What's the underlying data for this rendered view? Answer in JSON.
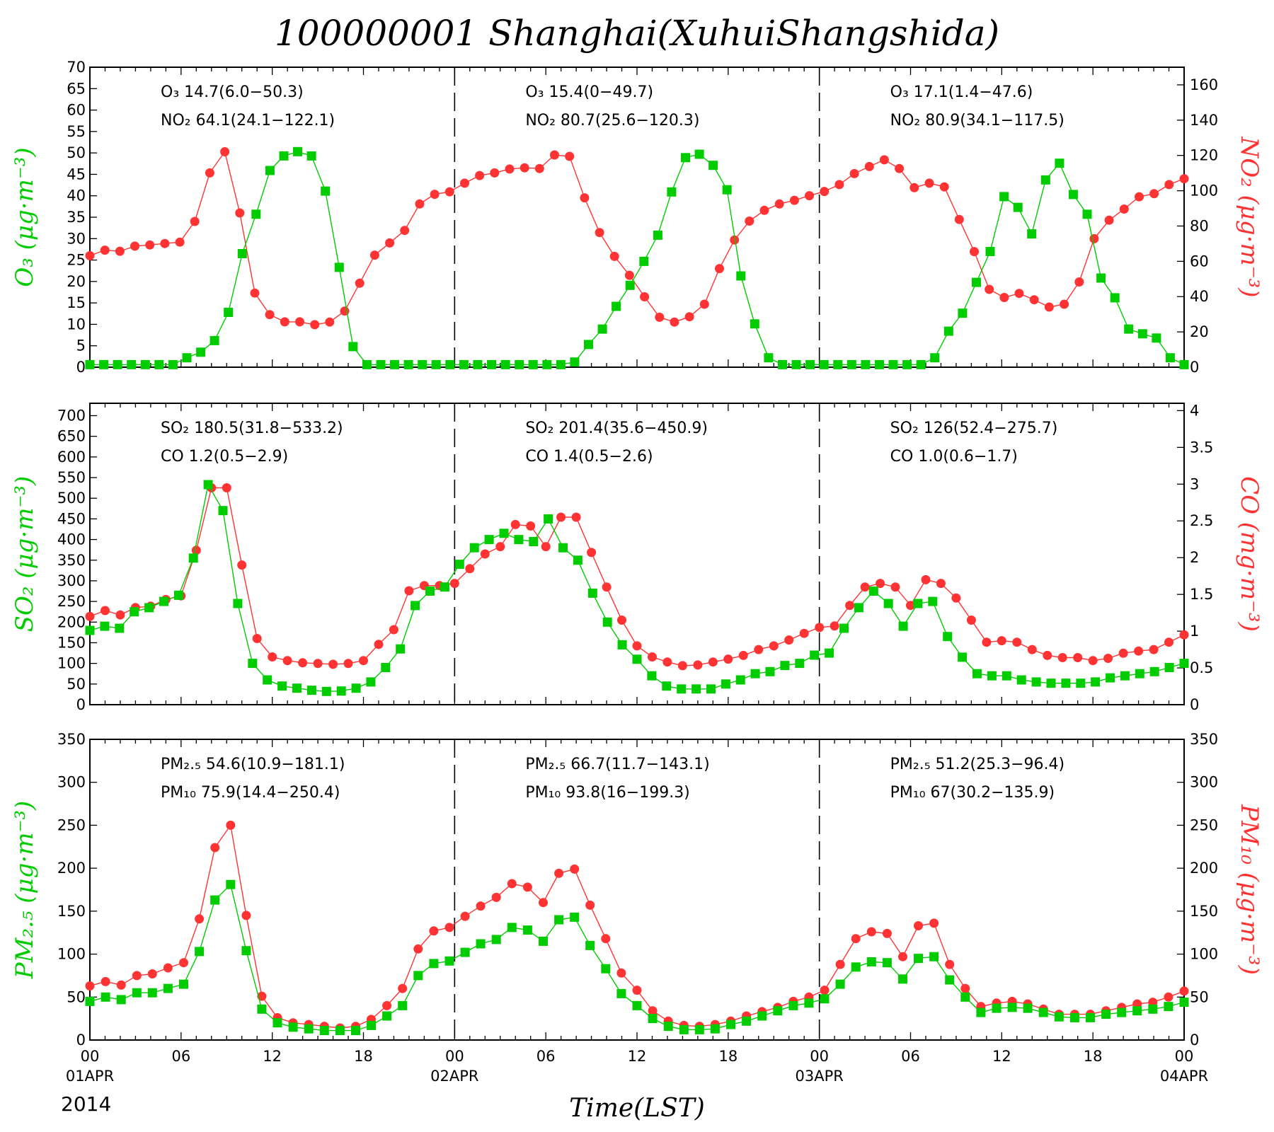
{
  "title": "100000001  Shanghai(XuhuiShangshida)",
  "x_axis": {
    "hour_labels": [
      "00",
      "06",
      "12",
      "18",
      "00",
      "06",
      "12",
      "18",
      "00",
      "06",
      "12",
      "18",
      "00"
    ],
    "date_labels": [
      "01APR",
      "02APR",
      "03APR",
      "04APR"
    ],
    "year_label": "2014",
    "xlabel": "Time(LST)"
  },
  "colors": {
    "left_series": "#00cc00",
    "right_series": "#ff3333"
  },
  "chart_data": [
    {
      "type": "line",
      "left_axis": {
        "label": "O₃  (μg·m⁻³)",
        "range": [
          0,
          70
        ],
        "ticks": [
          0,
          5,
          10,
          15,
          20,
          25,
          30,
          35,
          40,
          45,
          50,
          55,
          60,
          65,
          70
        ]
      },
      "right_axis": {
        "label": "NO₂ (μg·m⁻³)",
        "range": [
          0,
          170
        ],
        "ticks": [
          0,
          20,
          40,
          60,
          80,
          100,
          120,
          140,
          160
        ]
      },
      "annotations": [
        [
          "O₃ 14.7(6.0−50.3)",
          "NO₂ 64.1(24.1−122.1)"
        ],
        [
          "O₃ 15.4(0−49.7)",
          "NO₂ 80.7(25.6−120.3)"
        ],
        [
          "O₃ 17.1(1.4−47.6)",
          "NO₂ 80.9(34.1−117.5)"
        ]
      ],
      "series": [
        {
          "name": "O₃",
          "axis": "left",
          "marker": "square",
          "values": [
            0.6,
            0.6,
            0.6,
            0.6,
            0.6,
            0.6,
            0.6,
            2.2,
            3.5,
            6.2,
            12.8,
            26.5,
            35.7,
            45.9,
            49.3,
            50.3,
            49.3,
            41.1,
            23.3,
            4.8,
            0.6,
            0.6,
            0.6,
            0.6,
            0.6,
            0.6,
            0.6,
            0.6,
            0.6,
            0.6,
            0.6,
            0.6,
            0.6,
            0.6,
            0.6,
            1.2,
            5.3,
            8.9,
            14.2,
            19.1,
            24.7,
            30.8,
            40.9,
            48.9,
            49.7,
            47.1,
            41.4,
            21.3,
            10.1,
            2.2,
            0.6,
            0.6,
            0.6,
            0.6,
            0.6,
            0.6,
            0.6,
            0.6,
            0.6,
            0.6,
            0.6,
            2.2,
            8.4,
            12.6,
            19.8,
            27.0,
            39.8,
            37.3,
            31.1,
            43.7,
            47.6,
            40.3,
            35.7,
            20.8,
            16.2,
            8.9,
            7.8,
            6.8,
            2.2,
            0.6
          ]
        },
        {
          "name": "NO₂",
          "axis": "right",
          "marker": "circle",
          "values": [
            63.2,
            66.3,
            65.7,
            68.6,
            69.3,
            70.1,
            70.9,
            82.6,
            110.1,
            122.1,
            87.4,
            42.0,
            29.8,
            25.7,
            25.7,
            24.1,
            25.6,
            31.8,
            47.6,
            63.5,
            70.4,
            77.5,
            92.5,
            98.0,
            99.4,
            104.3,
            108.6,
            110.1,
            112.3,
            113.0,
            112.6,
            120.3,
            119.5,
            96.0,
            76.3,
            62.8,
            52.1,
            39.9,
            28.3,
            25.6,
            28.6,
            35.7,
            55.9,
            72.1,
            82.8,
            88.9,
            92.5,
            94.6,
            97.2,
            99.6,
            103.5,
            109.7,
            113.7,
            117.5,
            112.6,
            101.7,
            104.3,
            102.2,
            83.7,
            65.5,
            44.1,
            39.5,
            41.8,
            38.2,
            34.1,
            35.7,
            48.3,
            72.8,
            83.3,
            89.6,
            96.6,
            98.3,
            103.5,
            106.8
          ]
        }
      ]
    },
    {
      "type": "line",
      "left_axis": {
        "label": "SO₂  (μg·m⁻³)",
        "range": [
          0,
          730
        ],
        "ticks": [
          0,
          50,
          100,
          150,
          200,
          250,
          300,
          350,
          400,
          450,
          500,
          550,
          600,
          650,
          700
        ]
      },
      "right_axis": {
        "label": "CO  (mg·m⁻³)",
        "range": [
          0,
          4.1
        ],
        "ticks": [
          0,
          0.5,
          1,
          1.5,
          2,
          2.5,
          3,
          3.5,
          4
        ]
      },
      "annotations": [
        [
          "SO₂ 180.5(31.8−533.2)",
          "CO 1.2(0.5−2.9)"
        ],
        [
          "SO₂ 201.4(35.6−450.9)",
          "CO 1.4(0.5−2.6)"
        ],
        [
          "SO₂ 126(52.4−275.7)",
          "CO 1.0(0.6−1.7)"
        ]
      ],
      "series": [
        {
          "name": "SO₂",
          "axis": "left",
          "marker": "square",
          "values": [
            180,
            190,
            185,
            225,
            235,
            250,
            265,
            355,
            533,
            470,
            245,
            100,
            60,
            45,
            40,
            35,
            32,
            33,
            40,
            55,
            90,
            135,
            240,
            275,
            285,
            340,
            380,
            400,
            415,
            400,
            395,
            450,
            380,
            350,
            270,
            200,
            145,
            110,
            70,
            45,
            38,
            38,
            38,
            50,
            60,
            75,
            80,
            95,
            100,
            120,
            125,
            185,
            235,
            275,
            245,
            190,
            245,
            250,
            165,
            115,
            75,
            70,
            70,
            60,
            55,
            52,
            52,
            52,
            55,
            65,
            70,
            75,
            80,
            90,
            100
          ]
        },
        {
          "name": "CO",
          "axis": "right",
          "marker": "circle",
          "values": [
            1.2,
            1.28,
            1.22,
            1.32,
            1.34,
            1.43,
            1.48,
            2.1,
            2.95,
            2.95,
            1.9,
            0.9,
            0.65,
            0.6,
            0.57,
            0.56,
            0.55,
            0.56,
            0.6,
            0.82,
            1.02,
            1.55,
            1.62,
            1.62,
            1.65,
            1.85,
            2.05,
            2.15,
            2.45,
            2.43,
            2.15,
            2.55,
            2.55,
            2.07,
            1.6,
            1.15,
            0.8,
            0.65,
            0.58,
            0.53,
            0.54,
            0.58,
            0.62,
            0.67,
            0.75,
            0.8,
            0.88,
            0.97,
            1.05,
            1.07,
            1.35,
            1.6,
            1.65,
            1.6,
            1.35,
            1.7,
            1.65,
            1.45,
            1.15,
            0.85,
            0.87,
            0.85,
            0.75,
            0.67,
            0.64,
            0.64,
            0.6,
            0.63,
            0.7,
            0.73,
            0.75,
            0.85,
            0.95
          ]
        }
      ]
    },
    {
      "type": "line",
      "left_axis": {
        "label": "PM₂.₅  (μg·m⁻³)",
        "range": [
          0,
          350
        ],
        "ticks": [
          0,
          50,
          100,
          150,
          200,
          250,
          300,
          350
        ]
      },
      "right_axis": {
        "label": "PM₁₀  (μg·m⁻³)",
        "range": [
          0,
          350
        ],
        "ticks": [
          0,
          50,
          100,
          150,
          200,
          250,
          300,
          350
        ]
      },
      "annotations": [
        [
          "PM₂.₅ 54.6(10.9−181.1)",
          "PM₁₀ 75.9(14.4−250.4)"
        ],
        [
          "PM₂.₅ 66.7(11.7−143.1)",
          "PM₁₀ 93.8(16−199.3)"
        ],
        [
          "PM₂.₅ 51.2(25.3−96.4)",
          "PM₁₀ 67(30.2−135.9)"
        ]
      ],
      "series": [
        {
          "name": "PM₂.₅",
          "axis": "left",
          "marker": "square",
          "values": [
            45,
            50,
            47,
            55,
            55,
            60,
            65,
            103,
            163,
            181,
            104,
            36,
            20,
            15,
            13,
            11,
            11,
            11,
            17,
            28,
            40,
            75,
            89,
            92,
            102,
            112,
            117,
            131,
            128,
            115,
            140,
            143,
            110,
            83,
            54,
            40,
            25,
            16,
            12,
            12,
            13,
            18,
            22,
            28,
            34,
            40,
            43,
            48,
            65,
            85,
            91,
            90,
            71,
            95,
            97,
            70,
            50,
            32,
            37,
            38,
            37,
            32,
            27,
            26,
            26,
            30,
            32,
            34,
            36,
            39,
            44
          ]
        },
        {
          "name": "PM₁₀",
          "axis": "right",
          "marker": "circle",
          "values": [
            63,
            68,
            64,
            75,
            77,
            84,
            90,
            141,
            224,
            250,
            145,
            51,
            26,
            20,
            18,
            16,
            14,
            16,
            24,
            40,
            60,
            106,
            127,
            131,
            144,
            156,
            166,
            182,
            178,
            160,
            194,
            199,
            157,
            118,
            78,
            58,
            34,
            22,
            17,
            16,
            18,
            22,
            28,
            33,
            38,
            45,
            50,
            58,
            88,
            118,
            126,
            124,
            97,
            133,
            136,
            88,
            60,
            39,
            43,
            45,
            42,
            36,
            30,
            30,
            30,
            34,
            38,
            42,
            44,
            50,
            57
          ]
        }
      ]
    }
  ]
}
